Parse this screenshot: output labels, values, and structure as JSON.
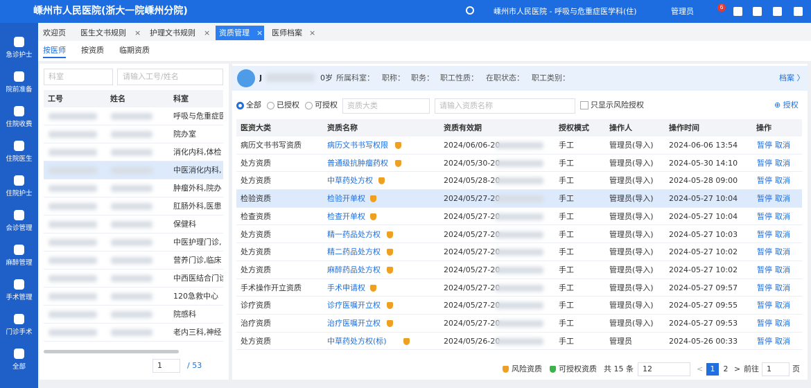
{
  "header": {
    "title": "嵊州市人民医院(浙大一院嵊州分院)",
    "department": "嵊州市人民医院 - 呼吸与危重症医学科(住)",
    "user": "管理员",
    "badge": "6"
  },
  "sidebar": [
    "急诊护士",
    "院前准备",
    "住院收费",
    "住院医生",
    "住院护士",
    "会诊管理",
    "麻醉管理",
    "手术管理",
    "门诊手术",
    "全部"
  ],
  "tabs": [
    "欢迎页",
    "医生文书规则",
    "护理文书规则",
    "资质管理",
    "医师档案"
  ],
  "subtabs": [
    "按医师",
    "按资质",
    "临期资质"
  ],
  "left": {
    "dept_placeholder": "科室",
    "search_placeholder": "请输入工号/姓名",
    "columns": [
      "工号",
      "姓名",
      "科室"
    ],
    "rows": [
      "呼吸与危重症医",
      "院办室",
      "消化内科,体检",
      "中医消化内科,",
      "肿瘤外科,院办",
      "肛肠外科,医患",
      "保健科",
      "中医护理门诊,",
      "营养门诊,临床",
      "中西医结合门诊",
      "120急救中心",
      "院感科",
      "老内三科,神经"
    ],
    "page": "1",
    "pages": "/ 53"
  },
  "info": {
    "name": "J",
    "age": "0岁",
    "fields": [
      "所属科室：",
      "职称：",
      "职务：",
      "职工性质：",
      "在职状态：",
      "职工类别："
    ],
    "archive": "档案 〉"
  },
  "filters": {
    "radios": [
      "全部",
      "已授权",
      "可授权"
    ],
    "category_placeholder": "资质大类",
    "name_placeholder": "请输入资质名称",
    "risk_only": "只显示风险授权",
    "authorize": "⊕ 授权"
  },
  "table": {
    "columns": [
      "医资大类",
      "资质名称",
      "资质有效期",
      "授权模式",
      "操作人",
      "操作时间",
      "操作"
    ],
    "rows": [
      [
        "病历文书书写资质",
        "病历文书书写权限",
        "2024/06/06-20",
        "手工",
        "管理员(导入)",
        "2024-06-06 13:54",
        "暂停",
        "取消"
      ],
      [
        "处方资质",
        "普通级抗肿瘤药权",
        "2024/05/30-20",
        "手工",
        "管理员(导入)",
        "2024-05-30 14:10",
        "暂停",
        "取消"
      ],
      [
        "处方资质",
        "中草药处方权",
        "2024/05/28-20",
        "手工",
        "管理员(导入)",
        "2024-05-28 09:00",
        "暂停",
        "取消"
      ],
      [
        "检验资质",
        "检验开单权",
        "2024/05/27-20",
        "手工",
        "管理员(导入)",
        "2024-05-27 10:04",
        "暂停",
        "取消"
      ],
      [
        "检查资质",
        "检查开单权",
        "2024/05/27-20",
        "手工",
        "管理员(导入)",
        "2024-05-27 10:04",
        "暂停",
        "取消"
      ],
      [
        "处方资质",
        "精一药品处方权",
        "2024/05/27-20",
        "手工",
        "管理员(导入)",
        "2024-05-27 10:03",
        "暂停",
        "取消"
      ],
      [
        "处方资质",
        "精二药品处方权",
        "2024/05/27-20",
        "手工",
        "管理员(导入)",
        "2024-05-27 10:02",
        "暂停",
        "取消"
      ],
      [
        "处方资质",
        "麻醉药品处方权",
        "2024/05/27-20",
        "手工",
        "管理员(导入)",
        "2024-05-27 10:02",
        "暂停",
        "取消"
      ],
      [
        "手术操作开立资质",
        "手术申请权",
        "2024/05/27-20",
        "手工",
        "管理员(导入)",
        "2024-05-27 09:57",
        "暂停",
        "取消"
      ],
      [
        "诊疗资质",
        "诊疗医嘱开立权",
        "2024/05/27-20",
        "手工",
        "管理员(导入)",
        "2024-05-27 09:55",
        "暂停",
        "取消"
      ],
      [
        "治疗资质",
        "治疗医嘱开立权",
        "2024/05/27-20",
        "手工",
        "管理员(导入)",
        "2024-05-27 09:53",
        "暂停",
        "取消"
      ],
      [
        "处方资质",
        "中草药处方权(标)",
        "2024/05/26-20",
        "手工",
        "管理员",
        "2024-05-26 00:33",
        "暂停",
        "取消"
      ]
    ]
  },
  "footer": {
    "legend": [
      "风险资质",
      "可授权资质"
    ],
    "total": "共 15 条",
    "page_size": "12",
    "pages": [
      "1",
      "2"
    ],
    "goto": "前往",
    "goto_page": "1",
    "page_unit": "页"
  }
}
